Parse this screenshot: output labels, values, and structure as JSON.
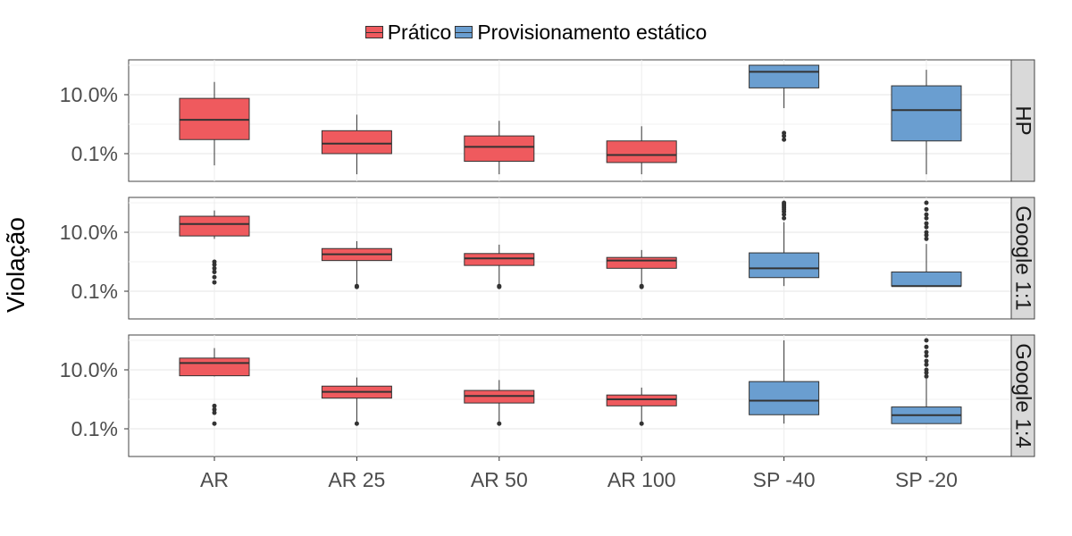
{
  "chart_data": {
    "type": "box",
    "title": "",
    "ylabel": "Violação",
    "xlabel": "",
    "y_scale": "log10",
    "y_ticks": [
      {
        "value": 0.1,
        "label": "0.1%"
      },
      {
        "value": 10.0,
        "label": "10.0%"
      }
    ],
    "categories": [
      "AR",
      "AR 25",
      "AR 50",
      "AR 100",
      "SP -40",
      "SP -20"
    ],
    "legend": {
      "position": "top",
      "entries": [
        {
          "name": "Prático",
          "color": "#ef5a5e"
        },
        {
          "name": "Provisionamento estático",
          "color": "#6a9ed0"
        }
      ]
    },
    "category_series": [
      "Prático",
      "Prático",
      "Prático",
      "Prático",
      "Provisionamento estático",
      "Provisionamento estático"
    ],
    "panels": [
      {
        "label": "HP",
        "boxes": [
          {
            "category": "AR",
            "whisker_low": 0.04,
            "q1": 0.3,
            "median": 1.4,
            "q3": 7.5,
            "whisker_high": 27,
            "outliers": []
          },
          {
            "category": "AR 25",
            "whisker_low": 0.02,
            "q1": 0.1,
            "median": 0.22,
            "q3": 0.6,
            "whisker_high": 2.1,
            "outliers": []
          },
          {
            "category": "AR 50",
            "whisker_low": 0.02,
            "q1": 0.055,
            "median": 0.17,
            "q3": 0.4,
            "whisker_high": 1.3,
            "outliers": []
          },
          {
            "category": "AR 100",
            "whisker_low": 0.02,
            "q1": 0.05,
            "median": 0.09,
            "q3": 0.27,
            "whisker_high": 0.85,
            "outliers": []
          },
          {
            "category": "SP -40",
            "whisker_low": 3.5,
            "q1": 17,
            "median": 60,
            "q3": 100,
            "whisker_high": 100,
            "outliers": [
              0.5,
              0.4,
              0.3
            ]
          },
          {
            "category": "SP -20",
            "whisker_low": 0.02,
            "q1": 0.27,
            "median": 3.0,
            "q3": 20,
            "whisker_high": 70,
            "outliers": []
          }
        ]
      },
      {
        "label": "Google 1:1",
        "boxes": [
          {
            "category": "AR",
            "whisker_low": 6.0,
            "q1": 7.5,
            "median": 19,
            "q3": 35,
            "whisker_high": 55,
            "outliers": [
              1.0,
              0.8,
              0.6,
              0.45,
              0.3,
              0.2
            ]
          },
          {
            "category": "AR 25",
            "whisker_low": 0.15,
            "q1": 1.1,
            "median": 1.8,
            "q3": 2.8,
            "whisker_high": 5.0,
            "outliers": [
              0.15,
              0.14
            ]
          },
          {
            "category": "AR 50",
            "whisker_low": 0.15,
            "q1": 0.75,
            "median": 1.3,
            "q3": 1.9,
            "whisker_high": 3.8,
            "outliers": [
              0.15,
              0.14
            ]
          },
          {
            "category": "AR 100",
            "whisker_low": 0.15,
            "q1": 0.6,
            "median": 1.1,
            "q3": 1.4,
            "whisker_high": 2.5,
            "outliers": [
              0.15,
              0.14
            ]
          },
          {
            "category": "SP -40",
            "whisker_low": 0.15,
            "q1": 0.29,
            "median": 0.6,
            "q3": 2.0,
            "whisker_high": 22,
            "outliers": [
              30,
              40,
              50,
              60,
              70,
              80,
              90,
              100
            ]
          },
          {
            "category": "SP -20",
            "whisker_low": 0.15,
            "q1": 0.15,
            "median": 0.15,
            "q3": 0.45,
            "whisker_high": 4.0,
            "outliers": [
              6,
              8,
              10,
              15,
              20,
              30,
              40,
              60,
              100
            ]
          }
        ]
      },
      {
        "label": "Google 1:4",
        "boxes": [
          {
            "category": "AR",
            "whisker_low": 6.0,
            "q1": 6.3,
            "median": 17,
            "q3": 25,
            "whisker_high": 55,
            "outliers": [
              0.6,
              0.45,
              0.35,
              0.15
            ]
          },
          {
            "category": "AR 25",
            "whisker_low": 0.15,
            "q1": 1.1,
            "median": 1.8,
            "q3": 2.8,
            "whisker_high": 5.5,
            "outliers": [
              0.15
            ]
          },
          {
            "category": "AR 50",
            "whisker_low": 0.15,
            "q1": 0.75,
            "median": 1.3,
            "q3": 2.0,
            "whisker_high": 4.5,
            "outliers": [
              0.15
            ]
          },
          {
            "category": "AR 100",
            "whisker_low": 0.15,
            "q1": 0.6,
            "median": 1.0,
            "q3": 1.4,
            "whisker_high": 2.5,
            "outliers": [
              0.15
            ]
          },
          {
            "category": "SP -40",
            "whisker_low": 0.15,
            "q1": 0.3,
            "median": 0.9,
            "q3": 4.0,
            "whisker_high": 100,
            "outliers": []
          },
          {
            "category": "SP -20",
            "whisker_low": 0.15,
            "q1": 0.15,
            "median": 0.29,
            "q3": 0.55,
            "whisker_high": 5.0,
            "outliers": [
              6,
              8,
              10,
              15,
              20,
              30,
              40,
              60,
              100
            ]
          }
        ]
      }
    ],
    "grid": true
  }
}
